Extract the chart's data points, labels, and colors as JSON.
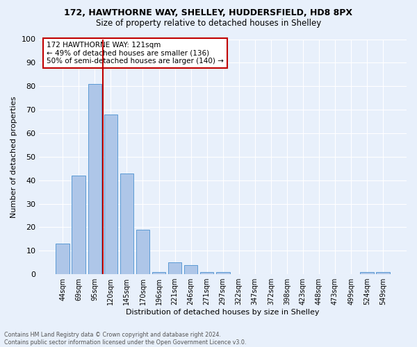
{
  "title1": "172, HAWTHORNE WAY, SHELLEY, HUDDERSFIELD, HD8 8PX",
  "title2": "Size of property relative to detached houses in Shelley",
  "xlabel": "Distribution of detached houses by size in Shelley",
  "ylabel": "Number of detached properties",
  "categories": [
    "44sqm",
    "69sqm",
    "95sqm",
    "120sqm",
    "145sqm",
    "170sqm",
    "196sqm",
    "221sqm",
    "246sqm",
    "271sqm",
    "297sqm",
    "322sqm",
    "347sqm",
    "372sqm",
    "398sqm",
    "423sqm",
    "448sqm",
    "473sqm",
    "499sqm",
    "524sqm",
    "549sqm"
  ],
  "values": [
    13,
    42,
    81,
    68,
    43,
    19,
    1,
    5,
    4,
    1,
    1,
    0,
    0,
    0,
    0,
    0,
    0,
    0,
    0,
    1,
    1
  ],
  "bar_color": "#aec6e8",
  "bar_edge_color": "#5b9bd5",
  "vline_color": "#c00000",
  "annotation_text": "172 HAWTHORNE WAY: 121sqm\n← 49% of detached houses are smaller (136)\n50% of semi-detached houses are larger (140) →",
  "annotation_box_color": "white",
  "annotation_box_edge_color": "#c00000",
  "ylim": [
    0,
    100
  ],
  "yticks": [
    0,
    10,
    20,
    30,
    40,
    50,
    60,
    70,
    80,
    90,
    100
  ],
  "footer_text": "Contains HM Land Registry data © Crown copyright and database right 2024.\nContains public sector information licensed under the Open Government Licence v3.0.",
  "bg_color": "#e8f0fb",
  "grid_color": "white",
  "title1_fontsize": 9,
  "title2_fontsize": 8.5,
  "ylabel_fontsize": 8,
  "xlabel_fontsize": 8
}
